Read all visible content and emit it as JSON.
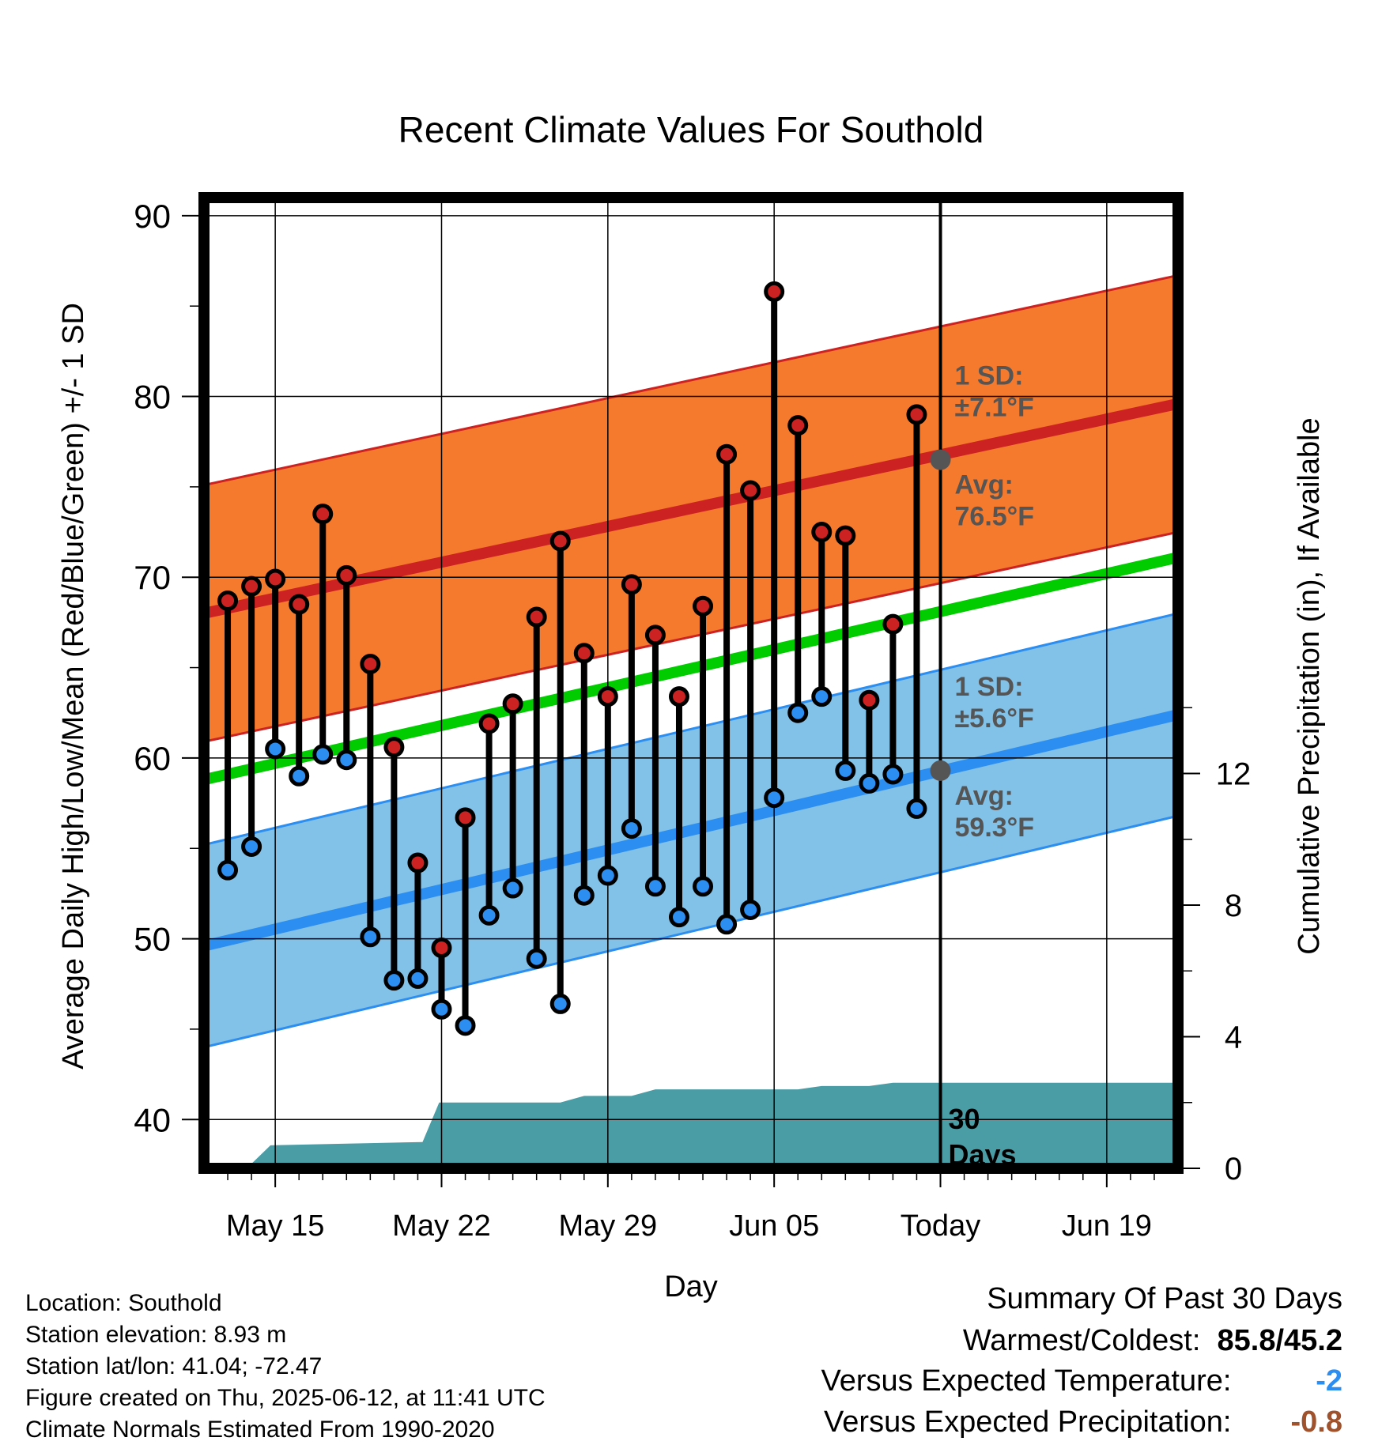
{
  "chart_data": {
    "type": "line",
    "title": "Recent Climate Values For Southold",
    "xlabel": "Day",
    "ylabel_left": "Average Daily High/Low/Mean (Red/Blue/Green) +/- 1 SD",
    "ylabel_right": "Cumulative Precipitation (in), If Available",
    "xlim": [
      0,
      41
    ],
    "ylim_left": [
      37.3,
      91.0
    ],
    "ylim_right": [
      0,
      29.5
    ],
    "x_tick_labels": [
      "May 15",
      "May 22",
      "May 29",
      "Jun 05",
      "Today",
      "Jun 19"
    ],
    "x_tick_days": [
      3,
      10,
      17,
      24,
      31,
      38
    ],
    "y_ticks_left": [
      40,
      50,
      60,
      70,
      80,
      90
    ],
    "y_ticks_right": [
      0,
      4,
      8,
      12
    ],
    "today_day": 31,
    "window_label": "30\nDays",
    "grid": true,
    "daily_high": [
      68.7,
      69.5,
      69.9,
      68.5,
      73.5,
      70.1,
      65.2,
      60.6,
      54.2,
      49.5,
      56.7,
      61.9,
      63.0,
      67.8,
      72.0,
      65.8,
      63.4,
      69.6,
      66.8,
      63.4,
      68.4,
      76.8,
      74.8,
      85.8,
      78.4,
      72.5,
      72.3,
      63.2,
      67.4,
      79.0
    ],
    "daily_low": [
      53.8,
      55.1,
      60.5,
      59.0,
      60.2,
      59.9,
      50.1,
      47.7,
      47.8,
      46.1,
      45.2,
      51.3,
      52.8,
      48.9,
      46.4,
      52.4,
      53.5,
      56.1,
      52.9,
      51.2,
      52.9,
      50.8,
      51.6,
      57.8,
      62.5,
      63.4,
      59.3,
      58.6,
      59.1,
      57.2
    ],
    "normal_high": {
      "start": 68.0,
      "end": 79.6,
      "sd": 7.1,
      "today": 76.5
    },
    "normal_low": {
      "start": 49.6,
      "end": 62.4,
      "sd": 5.6,
      "today": 59.3
    },
    "normal_mean": {
      "start": 58.8,
      "end": 71.1
    },
    "precip_cumulative": [
      [
        0,
        0
      ],
      [
        1.8,
        0
      ],
      [
        2.8,
        0.7
      ],
      [
        9.2,
        0.8
      ],
      [
        9.9,
        2.0
      ],
      [
        15.0,
        2.0
      ],
      [
        16.0,
        2.2
      ],
      [
        17.0,
        2.2
      ],
      [
        18.0,
        2.2
      ],
      [
        19.0,
        2.4
      ],
      [
        24.0,
        2.4
      ],
      [
        25.0,
        2.4
      ],
      [
        26.0,
        2.5
      ],
      [
        28.0,
        2.5
      ],
      [
        29.0,
        2.6
      ],
      [
        41.0,
        2.6
      ]
    ],
    "annotations": {
      "high_sd_label": "1 SD:",
      "high_sd_value": "±7.1°F",
      "high_avg_label": "Avg:",
      "high_avg_value": "76.5°F",
      "low_sd_label": "1 SD:",
      "low_sd_value": "±5.6°F",
      "low_avg_label": "Avg:",
      "low_avg_value": "59.3°F"
    },
    "colors": {
      "high_band": "#F57A2E",
      "high_line": "#CC2222",
      "low_band": "#82C1E8",
      "low_line": "#2B8EF0",
      "mean_line": "#00CC00",
      "precip": "#4A9CA5",
      "high_marker": "#CC2222",
      "low_marker": "#2B8EF0",
      "annotation": "#555555"
    }
  },
  "info": {
    "location": "Location: Southold",
    "elevation": "Station elevation: 8.93 m",
    "latlon": "Station lat/lon: 41.04; -72.47",
    "created": "Figure created on Thu, 2025-06-12, at 11:41 UTC",
    "normals": "Climate Normals Estimated From 1990-2020"
  },
  "summary": {
    "title": "Summary Of Past 30 Days",
    "warmest_label": "Warmest/Coldest:",
    "warmest_value": "85.8/45.2",
    "temp_label": "Versus Expected Temperature:",
    "temp_value": "-2",
    "temp_color": "#2B8EF0",
    "precip_label": "Versus Expected Precipitation:",
    "precip_value": "-0.8",
    "precip_color": "#A0522D"
  }
}
